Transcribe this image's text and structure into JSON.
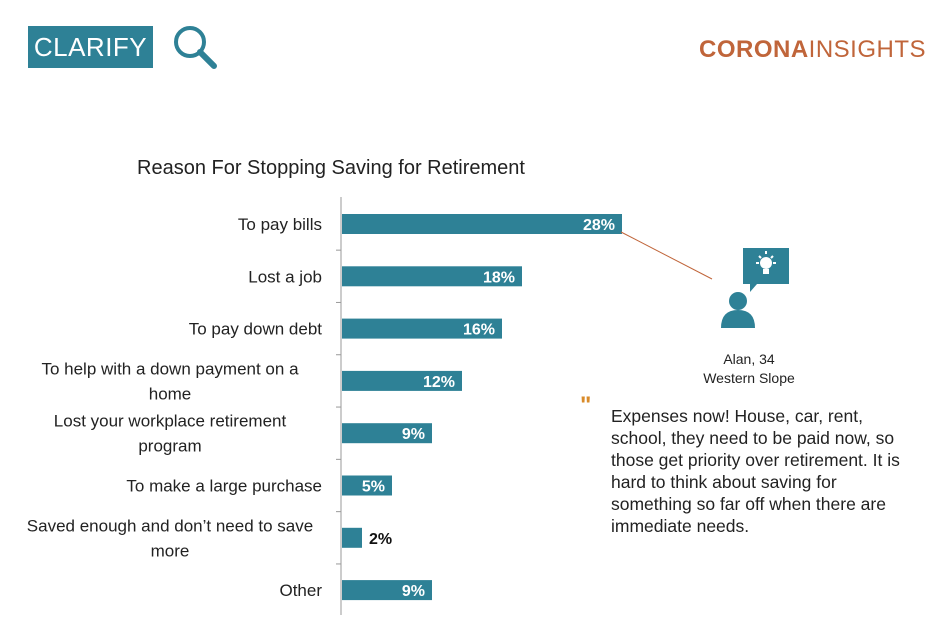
{
  "header": {
    "badge_label": "CLARIFY",
    "logo_bold": "CORONA",
    "logo_light": "INSIGHTS"
  },
  "colors": {
    "accent": "#2e8196",
    "brand": "#c0653a",
    "quote_mark": "#d98b2a"
  },
  "icons": {
    "search": "magnifier-icon",
    "person": "person-icon",
    "idea": "lightbulb-icon"
  },
  "chart_data": {
    "type": "bar",
    "orientation": "horizontal",
    "title": "Reason For Stopping Saving for Retirement",
    "categories": [
      "To pay bills",
      "Lost a job",
      "To pay down debt",
      "To help with a down payment on a home",
      "Lost your workplace retirement program",
      "To make a large purchase",
      "Saved enough and don’t need to save more",
      "Other"
    ],
    "values": [
      28,
      18,
      16,
      12,
      9,
      5,
      2,
      9
    ],
    "labels": [
      "28%",
      "18%",
      "16%",
      "12%",
      "9%",
      "5%",
      "2%",
      "9%"
    ],
    "unit": "%",
    "grid": false,
    "legend": "none",
    "xlim": [
      0,
      28
    ]
  },
  "quote": {
    "name": "Alan, 34",
    "region": "Western Slope",
    "mark": "\"",
    "text": "Expenses now! House, car, rent, school, they need to be paid now, so those get priority over retirement. It is hard to think about saving for something so far off when there are immediate needs."
  }
}
